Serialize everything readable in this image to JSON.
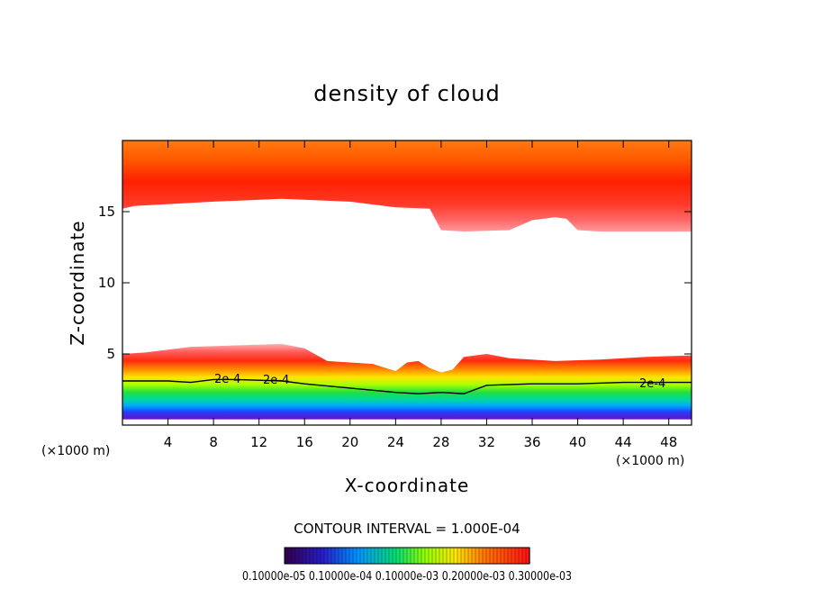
{
  "chart_data": {
    "type": "heatmap",
    "title": "density of cloud",
    "xlabel": "X-coordinate",
    "ylabel": "Z-coordinate",
    "x_unit_left": "(×1000 m)",
    "x_unit_right": "(×1000 m)",
    "xlim": [
      0,
      50
    ],
    "ylim": [
      0,
      20
    ],
    "x_ticks": [
      "4",
      "8",
      "12",
      "16",
      "20",
      "24",
      "28",
      "32",
      "36",
      "40",
      "44",
      "48"
    ],
    "x_tick_values": [
      4,
      8,
      12,
      16,
      20,
      24,
      28,
      32,
      36,
      40,
      44,
      48
    ],
    "y_ticks": [
      "5",
      "10",
      "15"
    ],
    "y_tick_values": [
      5,
      10,
      15
    ],
    "contour_interval": "CONTOUR INTERVAL = 1.000E-04",
    "contour_labels": [
      "2e-4",
      "2e-4",
      "2e-4"
    ],
    "colorbar_labels": "0.10000e-05 0.10000e-04 0.10000e-03 0.20000e-03 0.30000e-03",
    "upper_layer_base": [
      [
        0,
        15.2
      ],
      [
        1,
        15.4
      ],
      [
        8,
        15.7
      ],
      [
        14,
        15.9
      ],
      [
        20,
        15.7
      ],
      [
        24,
        15.3
      ],
      [
        27,
        15.2
      ],
      [
        28,
        13.7
      ],
      [
        30,
        13.6
      ],
      [
        34,
        13.7
      ],
      [
        36,
        14.4
      ],
      [
        38,
        14.6
      ],
      [
        39,
        14.5
      ],
      [
        40,
        13.7
      ],
      [
        42,
        13.6
      ],
      [
        50,
        13.6
      ]
    ],
    "lower_layer_top": [
      [
        0,
        5.0
      ],
      [
        2,
        5.1
      ],
      [
        6,
        5.5
      ],
      [
        10,
        5.6
      ],
      [
        14,
        5.7
      ],
      [
        16,
        5.4
      ],
      [
        18,
        4.5
      ],
      [
        22,
        4.3
      ],
      [
        24,
        3.8
      ],
      [
        25,
        4.4
      ],
      [
        26,
        4.5
      ],
      [
        27,
        4.0
      ],
      [
        28,
        3.7
      ],
      [
        29,
        3.9
      ],
      [
        30,
        4.8
      ],
      [
        32,
        5.0
      ],
      [
        34,
        4.7
      ],
      [
        38,
        4.5
      ],
      [
        42,
        4.6
      ],
      [
        46,
        4.8
      ],
      [
        50,
        4.9
      ]
    ],
    "contour_2e4": [
      [
        0,
        3.1
      ],
      [
        4,
        3.1
      ],
      [
        6,
        3.0
      ],
      [
        8,
        3.2
      ],
      [
        10,
        3.2
      ],
      [
        14,
        3.1
      ],
      [
        16,
        2.9
      ],
      [
        20,
        2.6
      ],
      [
        24,
        2.3
      ],
      [
        26,
        2.2
      ],
      [
        28,
        2.3
      ],
      [
        30,
        2.2
      ],
      [
        32,
        2.8
      ],
      [
        36,
        2.9
      ],
      [
        40,
        2.9
      ],
      [
        44,
        3.0
      ],
      [
        50,
        3.0
      ]
    ]
  }
}
